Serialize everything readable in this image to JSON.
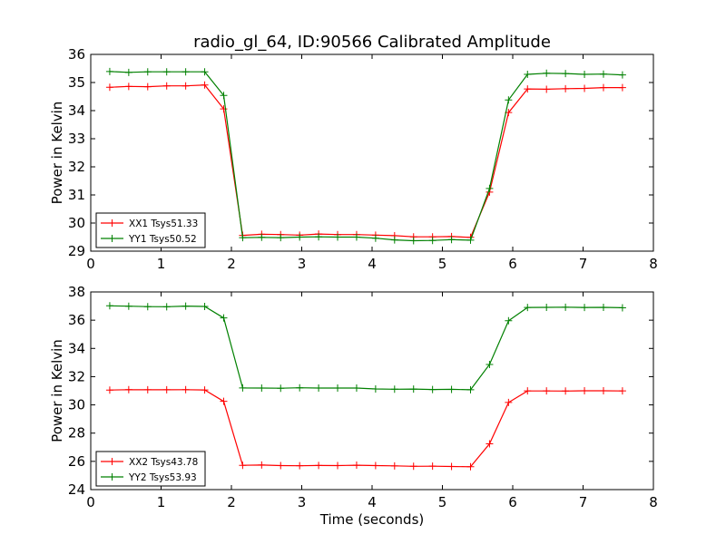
{
  "title": "radio_gl_64, ID:90566 Calibrated Amplitude",
  "chart_data": [
    {
      "type": "line",
      "title": "radio_gl_64, ID:90566 Calibrated Amplitude",
      "xlabel": "",
      "ylabel": "Power in Kelvin",
      "xlim": [
        0,
        8
      ],
      "ylim": [
        29,
        36
      ],
      "xticks": [
        0,
        1,
        2,
        3,
        4,
        5,
        6,
        7,
        8
      ],
      "yticks": [
        29,
        30,
        31,
        32,
        33,
        34,
        35,
        36
      ],
      "legend": "lower-left",
      "grid": false,
      "x": [
        0.27,
        0.54,
        0.81,
        1.08,
        1.35,
        1.62,
        1.89,
        2.16,
        2.43,
        2.7,
        2.97,
        3.24,
        3.51,
        3.78,
        4.05,
        4.32,
        4.59,
        4.86,
        5.13,
        5.4,
        5.67,
        5.94,
        6.21,
        6.48,
        6.75,
        7.02,
        7.29,
        7.56
      ],
      "series": [
        {
          "name": "XX1 Tsys51.33",
          "color": "#ff0000",
          "values": [
            34.83,
            34.86,
            34.85,
            34.88,
            34.88,
            34.91,
            34.06,
            29.56,
            29.6,
            29.59,
            29.57,
            29.61,
            29.59,
            29.59,
            29.57,
            29.55,
            29.51,
            29.51,
            29.52,
            29.49,
            31.1,
            33.93,
            34.77,
            34.76,
            34.78,
            34.79,
            34.82,
            34.82
          ]
        },
        {
          "name": "YY1 Tsys50.52",
          "color": "#008000",
          "values": [
            35.39,
            35.36,
            35.38,
            35.38,
            35.38,
            35.38,
            34.54,
            29.48,
            29.49,
            29.48,
            29.5,
            29.51,
            29.5,
            29.5,
            29.46,
            29.4,
            29.37,
            29.38,
            29.41,
            29.39,
            31.23,
            34.38,
            35.29,
            35.33,
            35.32,
            35.29,
            35.3,
            35.27
          ]
        }
      ]
    },
    {
      "type": "line",
      "title": "",
      "xlabel": "Time (seconds)",
      "ylabel": "Power in Kelvin",
      "xlim": [
        0,
        8
      ],
      "ylim": [
        24,
        38
      ],
      "xticks": [
        0,
        1,
        2,
        3,
        4,
        5,
        6,
        7,
        8
      ],
      "yticks": [
        24,
        26,
        28,
        30,
        32,
        34,
        36,
        38
      ],
      "legend": "lower-left",
      "grid": false,
      "x": [
        0.27,
        0.54,
        0.81,
        1.08,
        1.35,
        1.62,
        1.89,
        2.16,
        2.43,
        2.7,
        2.97,
        3.24,
        3.51,
        3.78,
        4.05,
        4.32,
        4.59,
        4.86,
        5.13,
        5.4,
        5.67,
        5.94,
        6.21,
        6.48,
        6.75,
        7.02,
        7.29,
        7.56
      ],
      "series": [
        {
          "name": "XX2 Tsys43.78",
          "color": "#ff0000",
          "values": [
            31.05,
            31.08,
            31.07,
            31.07,
            31.08,
            31.06,
            30.25,
            25.72,
            25.74,
            25.7,
            25.69,
            25.71,
            25.7,
            25.73,
            25.7,
            25.68,
            25.65,
            25.66,
            25.64,
            25.62,
            27.24,
            30.17,
            30.99,
            30.99,
            30.98,
            31.0,
            31.0,
            30.99
          ]
        },
        {
          "name": "YY2 Tsys53.93",
          "color": "#008000",
          "values": [
            37.02,
            36.99,
            36.96,
            36.95,
            37.0,
            36.97,
            36.16,
            31.2,
            31.19,
            31.18,
            31.21,
            31.19,
            31.19,
            31.19,
            31.13,
            31.11,
            31.12,
            31.09,
            31.1,
            31.07,
            32.86,
            35.96,
            36.9,
            36.91,
            36.92,
            36.9,
            36.91,
            36.88
          ]
        }
      ]
    }
  ]
}
